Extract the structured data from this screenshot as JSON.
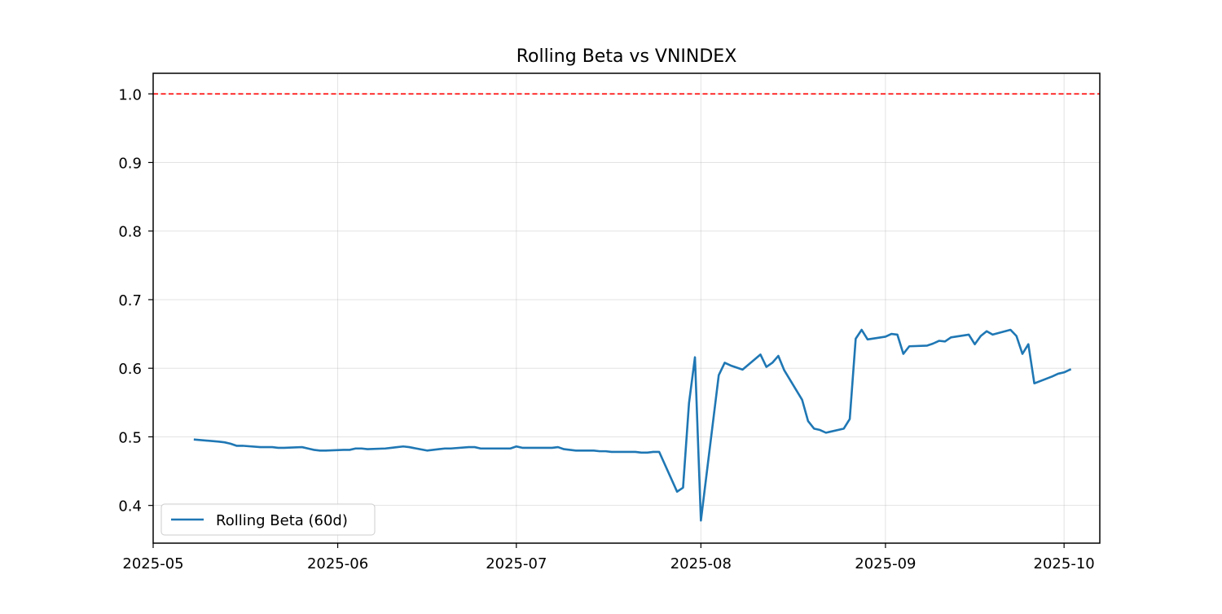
{
  "chart_data": {
    "type": "line",
    "title": "Rolling Beta vs VNINDEX",
    "xlabel": "",
    "ylabel": "",
    "xlim": [
      "2025-05-01",
      "2025-10-07"
    ],
    "ylim": [
      0.345,
      1.03
    ],
    "x_ticks": [
      "2025-05-01",
      "2025-06-01",
      "2025-07-01",
      "2025-08-01",
      "2025-09-01",
      "2025-10-01"
    ],
    "x_tick_labels": [
      "2025-05",
      "2025-06",
      "2025-07",
      "2025-08",
      "2025-09",
      "2025-10"
    ],
    "y_ticks": [
      0.4,
      0.5,
      0.6,
      0.7,
      0.8,
      0.9,
      1.0
    ],
    "y_tick_labels": [
      "0.4",
      "0.5",
      "0.6",
      "0.7",
      "0.8",
      "0.9",
      "1.0"
    ],
    "grid": true,
    "legend": {
      "position": "lower-left"
    },
    "reference_line": {
      "y": 1.0,
      "style": "dashed",
      "color": "#ff0000"
    },
    "series": [
      {
        "name": "Rolling Beta (60d)",
        "color": "#1f77b4",
        "points": [
          [
            "2025-05-08",
            0.496
          ],
          [
            "2025-05-12",
            0.493
          ],
          [
            "2025-05-13",
            0.492
          ],
          [
            "2025-05-14",
            0.49
          ],
          [
            "2025-05-15",
            0.487
          ],
          [
            "2025-05-16",
            0.487
          ],
          [
            "2025-05-19",
            0.485
          ],
          [
            "2025-05-20",
            0.485
          ],
          [
            "2025-05-21",
            0.485
          ],
          [
            "2025-05-22",
            0.484
          ],
          [
            "2025-05-23",
            0.484
          ],
          [
            "2025-05-26",
            0.485
          ],
          [
            "2025-05-27",
            0.483
          ],
          [
            "2025-05-28",
            0.481
          ],
          [
            "2025-05-29",
            0.48
          ],
          [
            "2025-05-30",
            0.48
          ],
          [
            "2025-06-02",
            0.481
          ],
          [
            "2025-06-03",
            0.481
          ],
          [
            "2025-06-04",
            0.483
          ],
          [
            "2025-06-05",
            0.483
          ],
          [
            "2025-06-06",
            0.482
          ],
          [
            "2025-06-09",
            0.483
          ],
          [
            "2025-06-10",
            0.484
          ],
          [
            "2025-06-11",
            0.485
          ],
          [
            "2025-06-12",
            0.486
          ],
          [
            "2025-06-13",
            0.485
          ],
          [
            "2025-06-16",
            0.48
          ],
          [
            "2025-06-17",
            0.481
          ],
          [
            "2025-06-18",
            0.482
          ],
          [
            "2025-06-19",
            0.483
          ],
          [
            "2025-06-20",
            0.483
          ],
          [
            "2025-06-23",
            0.485
          ],
          [
            "2025-06-24",
            0.485
          ],
          [
            "2025-06-25",
            0.483
          ],
          [
            "2025-06-26",
            0.483
          ],
          [
            "2025-06-27",
            0.483
          ],
          [
            "2025-06-30",
            0.483
          ],
          [
            "2025-07-01",
            0.486
          ],
          [
            "2025-07-02",
            0.484
          ],
          [
            "2025-07-03",
            0.484
          ],
          [
            "2025-07-04",
            0.484
          ],
          [
            "2025-07-07",
            0.484
          ],
          [
            "2025-07-08",
            0.485
          ],
          [
            "2025-07-09",
            0.482
          ],
          [
            "2025-07-10",
            0.481
          ],
          [
            "2025-07-11",
            0.48
          ],
          [
            "2025-07-14",
            0.48
          ],
          [
            "2025-07-15",
            0.479
          ],
          [
            "2025-07-16",
            0.479
          ],
          [
            "2025-07-17",
            0.478
          ],
          [
            "2025-07-18",
            0.478
          ],
          [
            "2025-07-21",
            0.478
          ],
          [
            "2025-07-22",
            0.477
          ],
          [
            "2025-07-23",
            0.477
          ],
          [
            "2025-07-24",
            0.478
          ],
          [
            "2025-07-25",
            0.478
          ],
          [
            "2025-07-28",
            0.42
          ],
          [
            "2025-07-29",
            0.426
          ],
          [
            "2025-07-30",
            0.549
          ],
          [
            "2025-07-31",
            0.616
          ],
          [
            "2025-08-01",
            0.378
          ],
          [
            "2025-08-04",
            0.59
          ],
          [
            "2025-08-05",
            0.608
          ],
          [
            "2025-08-06",
            0.604
          ],
          [
            "2025-08-07",
            0.601
          ],
          [
            "2025-08-08",
            0.598
          ],
          [
            "2025-08-11",
            0.62
          ],
          [
            "2025-08-12",
            0.602
          ],
          [
            "2025-08-13",
            0.608
          ],
          [
            "2025-08-14",
            0.618
          ],
          [
            "2025-08-15",
            0.597
          ],
          [
            "2025-08-18",
            0.554
          ],
          [
            "2025-08-19",
            0.523
          ],
          [
            "2025-08-20",
            0.512
          ],
          [
            "2025-08-21",
            0.51
          ],
          [
            "2025-08-22",
            0.506
          ],
          [
            "2025-08-25",
            0.512
          ],
          [
            "2025-08-26",
            0.526
          ],
          [
            "2025-08-27",
            0.643
          ],
          [
            "2025-08-28",
            0.656
          ],
          [
            "2025-08-29",
            0.642
          ],
          [
            "2025-09-01",
            0.646
          ],
          [
            "2025-09-02",
            0.65
          ],
          [
            "2025-09-03",
            0.649
          ],
          [
            "2025-09-04",
            0.621
          ],
          [
            "2025-09-05",
            0.632
          ],
          [
            "2025-09-08",
            0.633
          ],
          [
            "2025-09-09",
            0.636
          ],
          [
            "2025-09-10",
            0.64
          ],
          [
            "2025-09-11",
            0.639
          ],
          [
            "2025-09-12",
            0.645
          ],
          [
            "2025-09-15",
            0.649
          ],
          [
            "2025-09-16",
            0.635
          ],
          [
            "2025-09-17",
            0.647
          ],
          [
            "2025-09-18",
            0.654
          ],
          [
            "2025-09-19",
            0.649
          ],
          [
            "2025-09-22",
            0.656
          ],
          [
            "2025-09-23",
            0.647
          ],
          [
            "2025-09-24",
            0.621
          ],
          [
            "2025-09-25",
            0.635
          ],
          [
            "2025-09-26",
            0.578
          ],
          [
            "2025-09-29",
            0.588
          ],
          [
            "2025-09-30",
            0.592
          ],
          [
            "2025-10-01",
            0.594
          ],
          [
            "2025-10-02",
            0.598
          ]
        ]
      }
    ]
  }
}
